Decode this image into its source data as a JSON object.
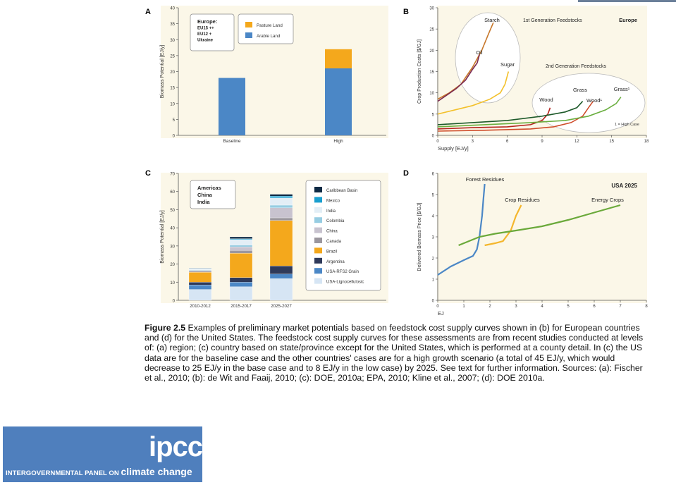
{
  "chart_data": [
    {
      "panel": "A",
      "type": "bar",
      "ylabel": "Biomass Potential [EJ/y]",
      "ylim": [
        0,
        40
      ],
      "yticks": [
        0,
        5,
        10,
        15,
        20,
        25,
        30,
        35,
        40
      ],
      "categories": [
        "Baseline",
        "High"
      ],
      "box_label": [
        "Europe:",
        "EU15 ++",
        "EU12 +",
        "Ukraine"
      ],
      "series": [
        {
          "name": "Arable Land",
          "color": "#4b87c6",
          "values": [
            18,
            21
          ]
        },
        {
          "name": "Pasture Land",
          "color": "#f4a81c",
          "values": [
            0,
            6
          ]
        }
      ],
      "legend_order": [
        "Pasture Land",
        "Arable Land"
      ]
    },
    {
      "panel": "B",
      "type": "line",
      "xlabel": "Supply [EJ/y]",
      "ylabel": "Crop Production Costs [$/GJ]",
      "xlim": [
        0,
        18
      ],
      "ylim": [
        0,
        30
      ],
      "xticks": [
        0,
        3,
        6,
        9,
        12,
        15,
        18
      ],
      "yticks": [
        0,
        5,
        10,
        15,
        20,
        25,
        30
      ],
      "region": "Europe",
      "group_labels": [
        "1st Generation Feedstocks",
        "2nd Generation Feedstocks"
      ],
      "note": "1 = High Case",
      "series": [
        {
          "name": "Starch",
          "color": "#c7772a",
          "points": [
            [
              0,
              8.5
            ],
            [
              1,
              10
            ],
            [
              2,
              12
            ],
            [
              3,
              16
            ],
            [
              3.8,
              20
            ],
            [
              4.4,
              24
            ],
            [
              4.8,
              26.5
            ]
          ]
        },
        {
          "name": "Oil",
          "color": "#7b2a52",
          "points": [
            [
              0,
              8
            ],
            [
              0.8,
              9.5
            ],
            [
              1.6,
              11
            ],
            [
              2.4,
              13
            ],
            [
              3,
              15.5
            ],
            [
              3.4,
              17
            ],
            [
              3.6,
              19
            ]
          ]
        },
        {
          "name": "Sugar",
          "color": "#f3c02a",
          "points": [
            [
              0,
              5
            ],
            [
              1.5,
              6
            ],
            [
              3,
              7
            ],
            [
              4.5,
              8.5
            ],
            [
              5.4,
              10
            ],
            [
              5.8,
              12
            ],
            [
              6.1,
              15
            ]
          ]
        },
        {
          "name": "Wood",
          "color": "#b5241f",
          "points": [
            [
              0,
              1.5
            ],
            [
              3,
              1.8
            ],
            [
              6,
              2
            ],
            [
              8,
              2.5
            ],
            [
              9,
              3.5
            ],
            [
              9.5,
              5
            ],
            [
              9.7,
              6.5
            ]
          ]
        },
        {
          "name": "Grass",
          "color": "#1e5a2a",
          "points": [
            [
              0,
              2.5
            ],
            [
              3,
              3
            ],
            [
              6,
              3.5
            ],
            [
              9,
              4.5
            ],
            [
              11,
              5.5
            ],
            [
              12,
              6.5
            ],
            [
              12.5,
              8
            ]
          ]
        },
        {
          "name": "Wood¹",
          "color": "#cf4d2b",
          "points": [
            [
              0,
              1
            ],
            [
              4,
              1.2
            ],
            [
              8,
              1.5
            ],
            [
              10,
              2
            ],
            [
              11.5,
              3
            ],
            [
              12.5,
              4.5
            ],
            [
              13,
              6.5
            ],
            [
              13.4,
              8
            ]
          ]
        },
        {
          "name": "Grass¹",
          "color": "#6aae3f",
          "points": [
            [
              0,
              2
            ],
            [
              4,
              2.5
            ],
            [
              8,
              3
            ],
            [
              11,
              3.5
            ],
            [
              13,
              4.5
            ],
            [
              14.5,
              6
            ],
            [
              15.4,
              7.5
            ],
            [
              15.8,
              9
            ]
          ]
        }
      ]
    },
    {
      "panel": "C",
      "type": "bar",
      "ylabel": "Biomass Potential [EJ/y]",
      "ylim": [
        0,
        70
      ],
      "yticks": [
        0,
        10,
        20,
        30,
        40,
        50,
        60,
        70
      ],
      "categories": [
        "2010-2012",
        "2015-2017",
        "2025-2027"
      ],
      "box_label": [
        "Americas",
        "China",
        "India"
      ],
      "series": [
        {
          "name": "USA-Lignocellulosic",
          "color": "#d6e5f4",
          "values": [
            6,
            7.5,
            12
          ]
        },
        {
          "name": "USA-RFS2 Grain",
          "color": "#4b87c6",
          "values": [
            2.5,
            2.5,
            2.5
          ]
        },
        {
          "name": "Argentina",
          "color": "#2f3a5a",
          "values": [
            1.5,
            2.5,
            4.5
          ]
        },
        {
          "name": "Brazil",
          "color": "#f4a81c",
          "values": [
            5.5,
            13.5,
            25
          ]
        },
        {
          "name": "Canada",
          "color": "#9b979e",
          "values": [
            0.5,
            1.5,
            1.5
          ]
        },
        {
          "name": "China",
          "color": "#c8c3cf",
          "values": [
            0.5,
            2,
            5.5
          ]
        },
        {
          "name": "Colombia",
          "color": "#97cde2",
          "values": [
            0.3,
            1,
            1.5
          ]
        },
        {
          "name": "India",
          "color": "#e3eef6",
          "values": [
            0.6,
            3,
            4
          ]
        },
        {
          "name": "Mexico",
          "color": "#1a9fcf",
          "values": [
            0.2,
            0.5,
            1
          ]
        },
        {
          "name": "Caribbean Basin",
          "color": "#0e2a44",
          "values": [
            0.2,
            1,
            1
          ]
        }
      ],
      "legend_order": [
        "Caribbean Basin",
        "Mexico",
        "India",
        "Colombia",
        "China",
        "Canada",
        "Brazil",
        "Argentina",
        "USA-RFS2 Grain",
        "USA-Lignocellulosic"
      ]
    },
    {
      "panel": "D",
      "type": "line",
      "xlabel": "EJ",
      "ylabel": "Delivered Biomass Price [$/GJ]",
      "xlim": [
        0,
        8
      ],
      "ylim": [
        0,
        6
      ],
      "xticks": [
        0,
        1,
        2,
        3,
        4,
        5,
        6,
        7,
        8
      ],
      "yticks": [
        0,
        1,
        2,
        3,
        4,
        5,
        6
      ],
      "title": "USA 2025",
      "series": [
        {
          "name": "Forest Residues",
          "color": "#4b87c6",
          "points": [
            [
              0,
              1.2
            ],
            [
              0.5,
              1.6
            ],
            [
              1,
              1.9
            ],
            [
              1.35,
              2.1
            ],
            [
              1.5,
              2.4
            ],
            [
              1.6,
              3
            ],
            [
              1.7,
              4
            ],
            [
              1.75,
              4.8
            ],
            [
              1.8,
              5.5
            ]
          ]
        },
        {
          "name": "Crop Residues",
          "color": "#f4b62c",
          "points": [
            [
              1.8,
              2.6
            ],
            [
              2.2,
              2.7
            ],
            [
              2.5,
              2.8
            ],
            [
              2.8,
              3.3
            ],
            [
              3,
              4
            ],
            [
              3.2,
              4.5
            ]
          ]
        },
        {
          "name": "Energy Crops",
          "color": "#6aa93a",
          "points": [
            [
              0.8,
              2.6
            ],
            [
              1.2,
              2.8
            ],
            [
              1.6,
              3
            ],
            [
              2.2,
              3.15
            ],
            [
              3,
              3.3
            ],
            [
              4,
              3.5
            ],
            [
              5,
              3.8
            ],
            [
              6,
              4.15
            ],
            [
              7,
              4.5
            ]
          ]
        }
      ]
    }
  ],
  "panel_letters": [
    "A",
    "B",
    "C",
    "D"
  ],
  "caption": {
    "label": "Figure 2.5",
    "text": " Examples of preliminary market potentials based on feedstock cost supply curves shown in (b) for European countries and (d) for the United States. The feedstock cost supply curves for these assessments are from recent studies conducted at levels of: (a) region; (c) country based on state/province except for the United States, which is performed at a county detail. In (c) the US data are for the baseline case and the other countries' cases are for a high growth scenario (a total of 45 EJ/y, which would decrease to 25 EJ/y in the base case and to 8 EJ/y in the low case) by 2025. See text for further information. Sources: (a): Fischer et al., 2010; (b): de Wit and Faaij, 2010; (c): DOE, 2010a; EPA, 2010; Kline et al., 2007; (d): DOE 2010a."
  },
  "logo": {
    "wordmark": "ipcc",
    "tagline_small": "INTERGOVERNMENTAL PANEL ON",
    "tagline_big": "climate change"
  }
}
